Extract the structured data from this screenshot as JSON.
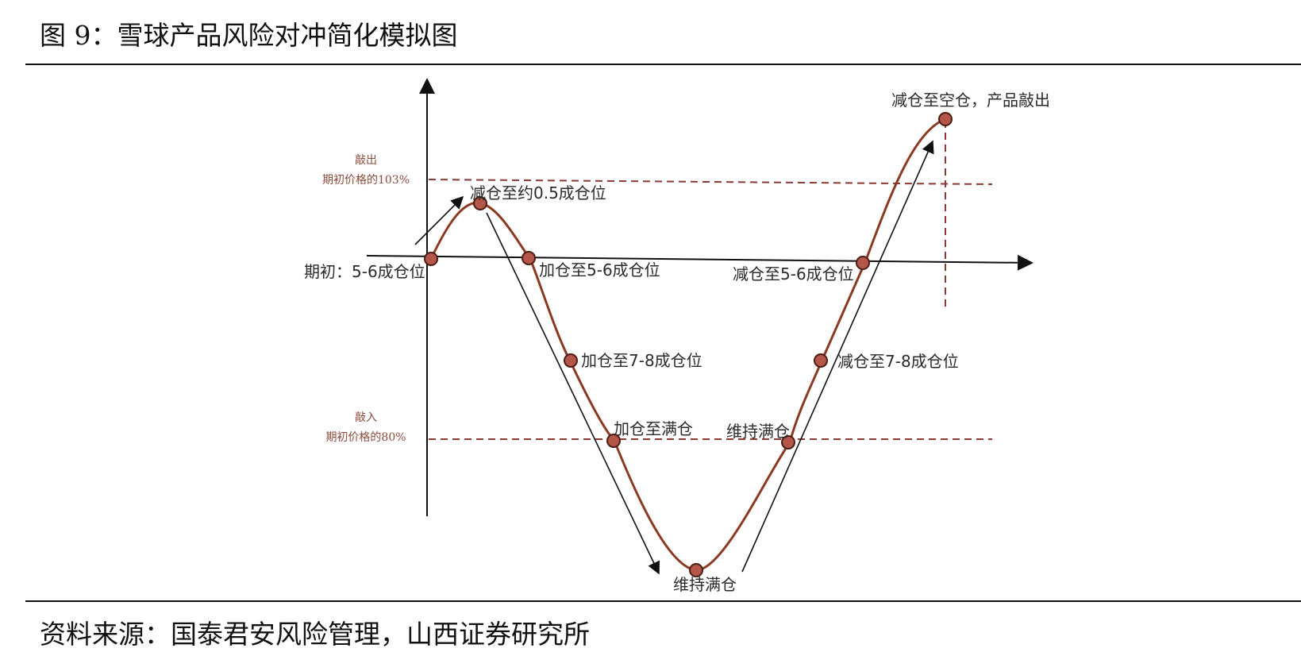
{
  "figure": {
    "title": "图 9：雪球产品风险对冲简化模拟图"
  },
  "source": {
    "text": "资料来源：国泰君安风险管理，山西证券研究所"
  },
  "levels": {
    "knock_out": {
      "line1": "敲出",
      "line2": "期初价格的103%"
    },
    "knock_in": {
      "line1": "敲入",
      "line2": "期初价格的80%"
    }
  },
  "points": {
    "start": "期初：5-6成仓位",
    "peak": "减仓至约0.5成仓位",
    "cross_down": "加仓至5-6成仓位",
    "add_78": "加仓至7-8成仓位",
    "add_full": "加仓至满仓",
    "bottom": "维持满仓",
    "keep_full": "维持满仓",
    "reduce_78": "减仓至7-8成仓位",
    "reduce_56": "减仓至5-6成仓位",
    "end": "减仓至空仓，产品敲出"
  },
  "colors": {
    "curve": "#8b3a22",
    "marker": "#b4564a",
    "dashed": "#8a3a32",
    "axis": "#111111"
  }
}
